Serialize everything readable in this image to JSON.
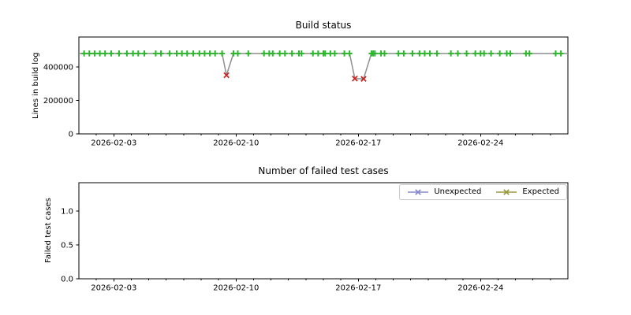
{
  "figure": {
    "background": "#ffffff"
  },
  "chart_data": [
    {
      "type": "line",
      "title": "Build status",
      "ylabel": "Lines in build log",
      "x_start": "2026-02-01",
      "x_end": "2026-03-01",
      "x_domain_days": 28,
      "x_ticks": [
        {
          "t": 2,
          "label": "2026-02-03"
        },
        {
          "t": 9,
          "label": "2026-02-10"
        },
        {
          "t": 16,
          "label": "2026-02-17"
        },
        {
          "t": 23,
          "label": "2026-02-24"
        }
      ],
      "x_minor_tick_every_days": 1,
      "ylim": [
        0,
        578000
      ],
      "y_ticks": [
        {
          "v": 0,
          "label": "0"
        },
        {
          "v": 200000,
          "label": "200000"
        },
        {
          "v": 400000,
          "label": "400000"
        }
      ],
      "grid": false,
      "line_color": "#8f8f8f",
      "markers": {
        "ok": {
          "symbol": "plus",
          "color": "#2eb52e",
          "meaning": "successful build"
        },
        "fail": {
          "symbol": "x",
          "color": "#cc2222",
          "meaning": "failed build"
        }
      },
      "points": [
        [
          0,
          480000,
          "none"
        ],
        [
          0.3,
          480000,
          "ok"
        ],
        [
          0.6,
          480000,
          "ok"
        ],
        [
          0.9,
          480000,
          "ok"
        ],
        [
          1.2,
          480000,
          "ok"
        ],
        [
          1.5,
          480000,
          "ok"
        ],
        [
          1.85,
          480000,
          "ok"
        ],
        [
          2.3,
          480000,
          "ok"
        ],
        [
          2.75,
          480000,
          "ok"
        ],
        [
          3.1,
          480000,
          "ok"
        ],
        [
          3.4,
          480000,
          "ok"
        ],
        [
          3.75,
          480000,
          "ok"
        ],
        [
          4.4,
          480000,
          "ok"
        ],
        [
          4.7,
          480000,
          "ok"
        ],
        [
          5.2,
          480000,
          "ok"
        ],
        [
          5.6,
          480000,
          "ok"
        ],
        [
          5.9,
          480000,
          "ok"
        ],
        [
          6.2,
          480000,
          "ok"
        ],
        [
          6.55,
          480000,
          "ok"
        ],
        [
          6.9,
          480000,
          "ok"
        ],
        [
          7.2,
          480000,
          "ok"
        ],
        [
          7.5,
          480000,
          "ok"
        ],
        [
          7.8,
          480000,
          "ok"
        ],
        [
          8.2,
          480000,
          "ok"
        ],
        [
          8.45,
          350000,
          "fail"
        ],
        [
          8.85,
          480000,
          "ok"
        ],
        [
          9.1,
          480000,
          "ok"
        ],
        [
          9.7,
          480000,
          "ok"
        ],
        [
          10.6,
          480000,
          "ok"
        ],
        [
          10.9,
          480000,
          "ok"
        ],
        [
          11.1,
          480000,
          "ok"
        ],
        [
          11.5,
          480000,
          "ok"
        ],
        [
          11.8,
          480000,
          "ok"
        ],
        [
          12.2,
          480000,
          "ok"
        ],
        [
          12.6,
          480000,
          "ok"
        ],
        [
          12.75,
          480000,
          "ok"
        ],
        [
          13.4,
          480000,
          "ok"
        ],
        [
          13.7,
          480000,
          "ok"
        ],
        [
          14.0,
          480000,
          "ok"
        ],
        [
          14.1,
          480000,
          "ok"
        ],
        [
          14.4,
          480000,
          "ok"
        ],
        [
          14.65,
          480000,
          "ok"
        ],
        [
          15.2,
          480000,
          "ok"
        ],
        [
          15.5,
          480000,
          "ok"
        ],
        [
          15.8,
          330000,
          "fail"
        ],
        [
          16.3,
          328000,
          "fail"
        ],
        [
          16.75,
          480000,
          "ok"
        ],
        [
          16.85,
          480000,
          "ok"
        ],
        [
          16.95,
          480000,
          "ok"
        ],
        [
          17.3,
          480000,
          "ok"
        ],
        [
          17.5,
          480000,
          "ok"
        ],
        [
          18.3,
          480000,
          "ok"
        ],
        [
          18.6,
          480000,
          "ok"
        ],
        [
          19.1,
          480000,
          "ok"
        ],
        [
          19.5,
          480000,
          "ok"
        ],
        [
          19.8,
          480000,
          "ok"
        ],
        [
          20.1,
          480000,
          "ok"
        ],
        [
          20.5,
          480000,
          "ok"
        ],
        [
          21.3,
          480000,
          "ok"
        ],
        [
          21.7,
          480000,
          "ok"
        ],
        [
          22.2,
          480000,
          "ok"
        ],
        [
          22.7,
          480000,
          "ok"
        ],
        [
          23.0,
          480000,
          "ok"
        ],
        [
          23.2,
          480000,
          "ok"
        ],
        [
          23.6,
          480000,
          "ok"
        ],
        [
          24.1,
          480000,
          "ok"
        ],
        [
          24.5,
          480000,
          "ok"
        ],
        [
          24.7,
          480000,
          "ok"
        ],
        [
          25.6,
          480000,
          "ok"
        ],
        [
          25.8,
          480000,
          "ok"
        ],
        [
          27.3,
          480000,
          "ok"
        ],
        [
          27.6,
          480000,
          "ok"
        ],
        [
          28,
          480000,
          "none"
        ]
      ]
    },
    {
      "type": "line",
      "title": "Number of failed test cases",
      "ylabel": "Failed test cases",
      "x_start": "2026-02-01",
      "x_end": "2026-03-01",
      "x_domain_days": 28,
      "x_ticks": [
        {
          "t": 2,
          "label": "2026-02-03"
        },
        {
          "t": 9,
          "label": "2026-02-10"
        },
        {
          "t": 16,
          "label": "2026-02-17"
        },
        {
          "t": 23,
          "label": "2026-02-24"
        }
      ],
      "x_minor_tick_every_days": 1,
      "ylim": [
        0,
        1.42
      ],
      "y_ticks": [
        {
          "v": 0,
          "label": "0.0"
        },
        {
          "v": 0.5,
          "label": "0.5"
        },
        {
          "v": 1,
          "label": "1.0"
        }
      ],
      "grid": false,
      "legend_position": "upper right",
      "series": [
        {
          "name": "Unexpected",
          "color": "#8787cd",
          "marker": "x",
          "points": []
        },
        {
          "name": "Expected",
          "color": "#98983f",
          "marker": "x",
          "points": []
        }
      ]
    }
  ]
}
